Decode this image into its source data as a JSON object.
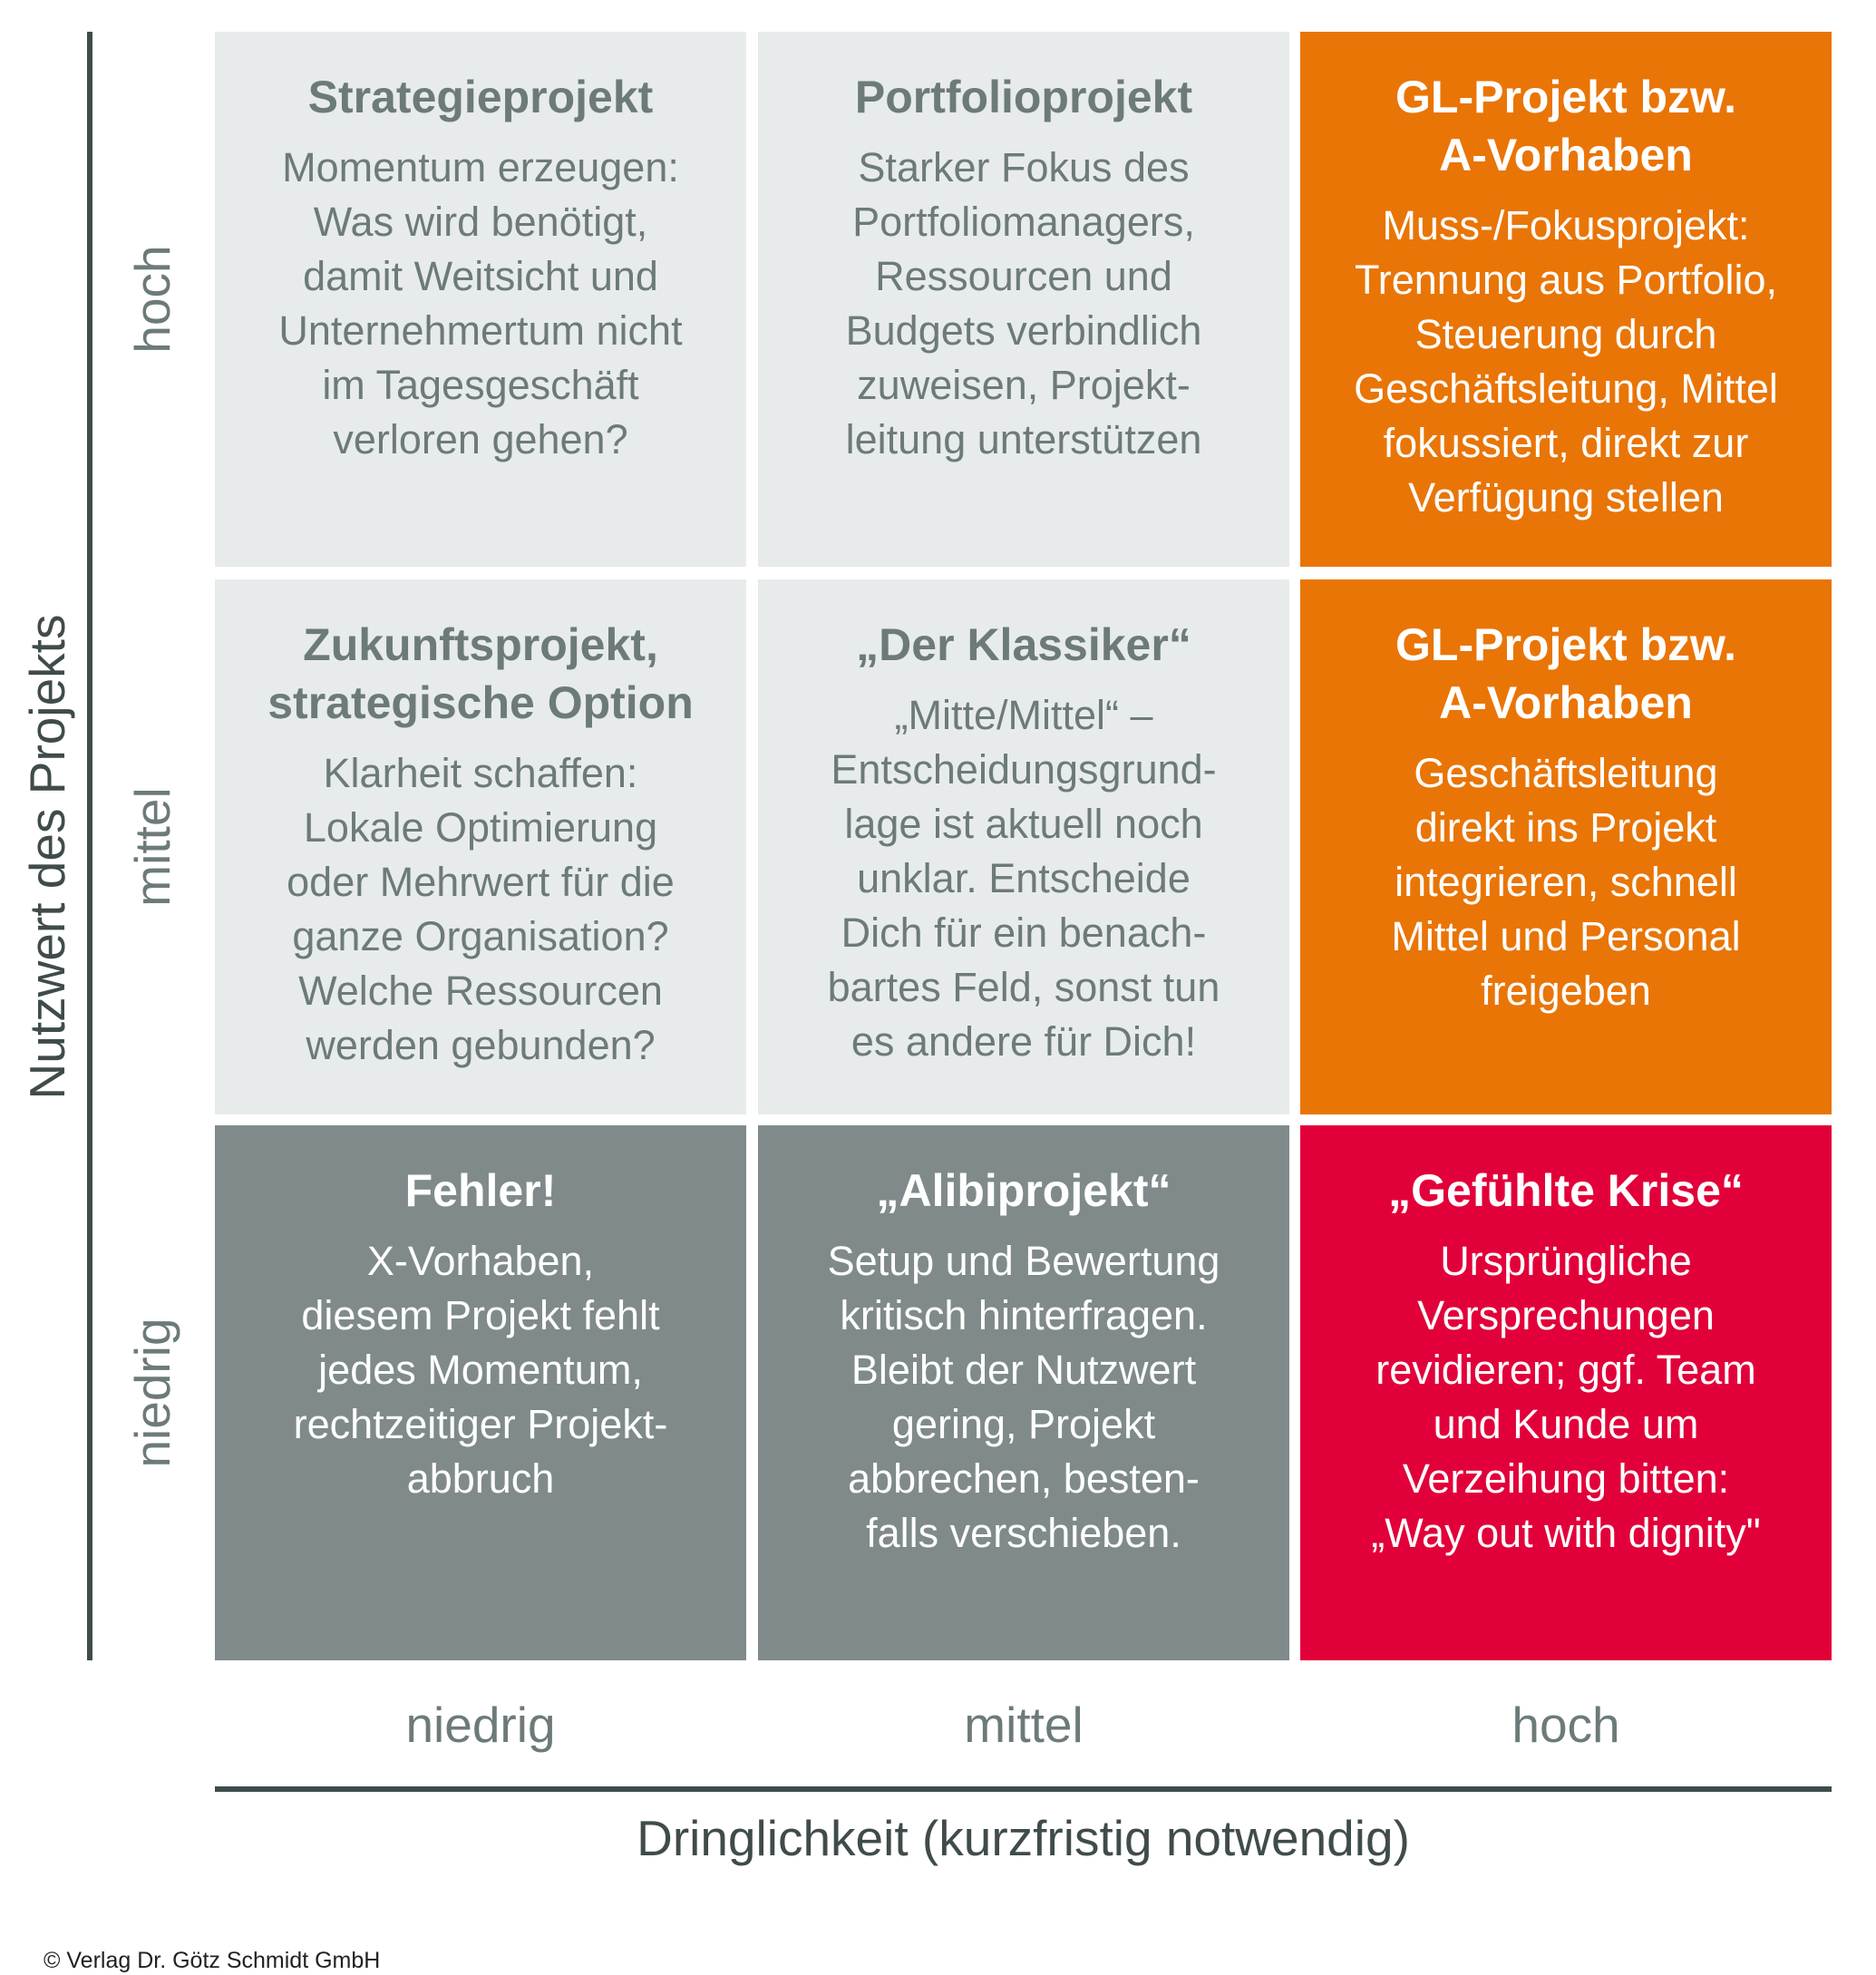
{
  "y_axis": {
    "title": "Nutzwert des Projekts",
    "levels": [
      "hoch",
      "mittel",
      "niedrig"
    ]
  },
  "x_axis": {
    "title": "Dringlichkeit (kurzfristig notwendig)",
    "levels": [
      "niedrig",
      "mittel",
      "hoch"
    ]
  },
  "colors": {
    "light": "#e8ebeb",
    "orange": "#e97506",
    "dark": "#808a8a",
    "red": "#e2003a",
    "text": "#6d7a7a",
    "axis": "#404b4b"
  },
  "cells": [
    {
      "title": "Strategieprojekt",
      "body": "Momentum erzeugen:\nWas wird benötigt,\ndamit Weitsicht und\nUnternehmertum nicht\nim Tagesgeschäft\nverloren gehen?"
    },
    {
      "title": "Portfolioprojekt",
      "body": "Starker Fokus des\nPortfoliomanagers,\nRessourcen und\nBudgets verbindlich\nzuweisen, Projekt-\nleitung unterstützen"
    },
    {
      "title": "GL-Projekt bzw.\nA-Vorhaben",
      "body": "Muss-/Fokusprojekt:\nTrennung aus Portfolio,\nSteuerung durch\nGeschäftsleitung, Mittel\nfokussiert, direkt zur\nVerfügung stellen"
    },
    {
      "title": "Zukunftsprojekt,\nstrategische Option",
      "body": "Klarheit schaffen:\nLokale Optimierung\noder Mehrwert für die\nganze Organisation?\nWelche Ressourcen\nwerden gebunden?"
    },
    {
      "title": "„Der Klassiker“",
      "body": "„Mitte/Mittel“ –\nEntscheidungsgrund-\nlage ist aktuell noch\nunklar. Entscheide\nDich für ein benach-\nbartes Feld, sonst tun\nes andere für Dich!"
    },
    {
      "title": "GL-Projekt bzw.\nA-Vorhaben",
      "body": "Geschäftsleitung\ndirekt ins Projekt\nintegrieren, schnell\nMittel und Personal\nfreigeben"
    },
    {
      "title": "Fehler!",
      "body": "X-Vorhaben,\ndiesem Projekt fehlt\njedes Momentum,\nrechtzeitiger Projekt-\nabbruch"
    },
    {
      "title": "„Alibiprojekt“",
      "body": "Setup und Bewertung\nkritisch hinterfragen.\nBleibt der Nutzwert\ngering, Projekt\nabbrechen, besten-\nfalls verschieben."
    },
    {
      "title": "„Gefühlte Krise“",
      "body": "Ursprüngliche\nVersprechungen\nrevidieren; ggf. Team\nund Kunde um\nVerzeihung bitten:\n„Way out with dignity\""
    }
  ],
  "copyright": "© Verlag Dr. Götz Schmidt GmbH"
}
